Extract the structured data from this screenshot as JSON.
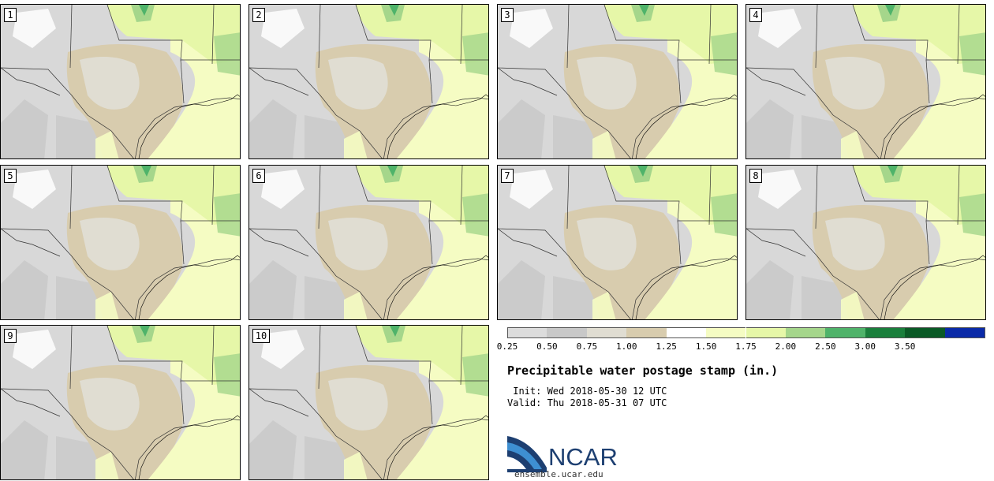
{
  "panels": [
    {
      "label": "1"
    },
    {
      "label": "2"
    },
    {
      "label": "3"
    },
    {
      "label": "4"
    },
    {
      "label": "5"
    },
    {
      "label": "6"
    },
    {
      "label": "7"
    },
    {
      "label": "8"
    },
    {
      "label": "9"
    },
    {
      "label": "10"
    }
  ],
  "legend": {
    "ticks": [
      "0.25",
      "0.50",
      "0.75",
      "1.00",
      "1.25",
      "1.50",
      "1.75",
      "2.00",
      "2.50",
      "3.00",
      "3.50"
    ],
    "colors": [
      "#dcdcdc",
      "#c8c8c8",
      "#e0ddd2",
      "#d8ccae",
      "#ffffff",
      "#f5fcc3",
      "#e6f7a8",
      "#a5d68b",
      "#4fb36a",
      "#1a7f3c",
      "#0a5a26",
      "#0a2aa8"
    ]
  },
  "map_colors": {
    "gray_light": "#d8d8d8",
    "gray_dark": "#c8c8c8",
    "tan_light": "#e0ddd2",
    "tan": "#d8ccae",
    "yellow": "#f5fcc3",
    "yellow_green": "#e6f7a8",
    "green": "#a5d68b",
    "green_dark": "#4fb36a",
    "white": "#ffffff"
  },
  "title": "Precipitable water postage stamp (in.)",
  "init": " Init: Wed 2018-05-30 12 UTC",
  "valid": "Valid: Thu 2018-05-31 07 UTC",
  "logo": {
    "text": "NCAR",
    "site": "ensemble.ucar.edu",
    "colors": {
      "dark": "#1d3f71",
      "light": "#3e8fd1"
    }
  }
}
